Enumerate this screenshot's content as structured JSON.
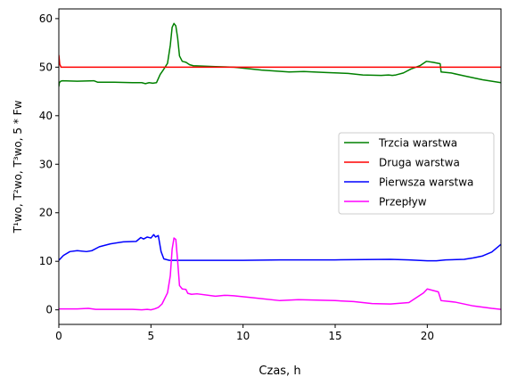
{
  "chart_data": {
    "type": "line",
    "xlabel": "Czas, h",
    "ylabel": "T¹wo, T²wo, T³wo, 5 * Fw",
    "xlim": [
      0,
      24
    ],
    "ylim": [
      -3,
      62
    ],
    "xticks": [
      0,
      5,
      10,
      15,
      20
    ],
    "yticks": [
      0,
      10,
      20,
      30,
      40,
      50,
      60
    ],
    "grid": false,
    "legend_position": "center-right",
    "series": [
      {
        "name": "Trzcia warstwa",
        "color": "#008000",
        "x": [
          0,
          0.03,
          0.1,
          0.2,
          1,
          1.9,
          2.1,
          3,
          4,
          4.5,
          4.7,
          4.9,
          5.1,
          5.3,
          5.5,
          5.7,
          5.9,
          6.05,
          6.15,
          6.25,
          6.35,
          6.45,
          6.55,
          6.7,
          6.9,
          7.1,
          7.3,
          8.5,
          9.5,
          11,
          12.5,
          13.3,
          14.5,
          15.7,
          16.5,
          17.5,
          17.9,
          18.1,
          18.3,
          18.7,
          19.1,
          19.6,
          19.95,
          20.3,
          20.7,
          20.75,
          21.3,
          22,
          23,
          24
        ],
        "y": [
          46.0,
          46.8,
          47.1,
          47.2,
          47.1,
          47.2,
          46.9,
          46.9,
          46.8,
          46.8,
          46.6,
          46.8,
          46.7,
          46.8,
          48.5,
          49.6,
          50.8,
          54.5,
          58.2,
          59.0,
          58.5,
          56.0,
          52.3,
          51.2,
          51.0,
          50.5,
          50.3,
          50.1,
          50.0,
          49.4,
          49.0,
          49.1,
          48.9,
          48.7,
          48.4,
          48.3,
          48.4,
          48.3,
          48.4,
          48.8,
          49.6,
          50.3,
          51.2,
          51.0,
          50.7,
          49.0,
          48.8,
          48.2,
          47.4,
          46.8
        ]
      },
      {
        "name": "Druga warstwa",
        "color": "#ff0000",
        "x": [
          0,
          0.05,
          0.12,
          24
        ],
        "y": [
          52.5,
          50.6,
          50.0,
          50.0
        ]
      },
      {
        "name": "Pierwsza warstwa",
        "color": "#0000ff",
        "x": [
          0,
          0.25,
          0.6,
          1,
          1.5,
          1.8,
          2.2,
          2.8,
          3.5,
          4.2,
          4.45,
          4.6,
          4.8,
          5.0,
          5.15,
          5.25,
          5.4,
          5.55,
          5.7,
          6.0,
          7,
          10,
          12,
          15,
          18,
          19,
          20,
          20.5,
          21,
          22,
          22.5,
          23,
          23.5,
          24
        ],
        "y": [
          10.2,
          11.2,
          12.0,
          12.2,
          12.0,
          12.2,
          13.0,
          13.6,
          14.0,
          14.1,
          14.9,
          14.6,
          15.0,
          14.8,
          15.5,
          15.0,
          15.3,
          12.0,
          10.5,
          10.2,
          10.2,
          10.2,
          10.3,
          10.3,
          10.4,
          10.3,
          10.1,
          10.1,
          10.3,
          10.4,
          10.7,
          11.1,
          11.9,
          13.5
        ]
      },
      {
        "name": "Przepływ",
        "color": "#ff00ff",
        "x": [
          0,
          1,
          1.6,
          2,
          3,
          4,
          4.5,
          4.8,
          5.0,
          5.2,
          5.4,
          5.6,
          5.9,
          6.05,
          6.15,
          6.25,
          6.35,
          6.45,
          6.55,
          6.7,
          6.9,
          7.0,
          7.2,
          7.5,
          8.5,
          9.0,
          9.5,
          10.5,
          12,
          13.0,
          14,
          15,
          16,
          17,
          18,
          19,
          19.8,
          20.0,
          20.3,
          20.6,
          20.75,
          21.5,
          22.5,
          23.5,
          24
        ],
        "y": [
          0.2,
          0.2,
          0.3,
          0.1,
          0.1,
          0.1,
          0.0,
          0.1,
          0.0,
          0.2,
          0.5,
          1.2,
          3.5,
          7.0,
          12.5,
          14.8,
          14.5,
          10.0,
          5.0,
          4.3,
          4.2,
          3.4,
          3.2,
          3.3,
          2.8,
          3.0,
          2.9,
          2.5,
          1.9,
          2.1,
          2.0,
          1.9,
          1.7,
          1.3,
          1.2,
          1.5,
          3.5,
          4.3,
          4.0,
          3.7,
          1.9,
          1.6,
          0.8,
          0.3,
          0.1
        ]
      }
    ]
  }
}
